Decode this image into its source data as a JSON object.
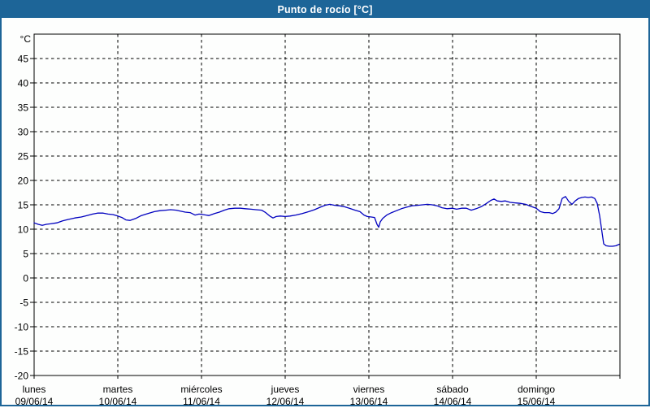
{
  "title": "Punto de rocío [°C]",
  "colors": {
    "header_bg": "#1d6598",
    "frame_border": "#1d6598",
    "line": "#0000bf",
    "grid": "#000000",
    "text": "#000000",
    "background": "#fdfefd"
  },
  "chart_data": {
    "type": "line",
    "title": "Punto de rocío [°C]",
    "xlabel": "",
    "ylabel": "°C",
    "ylim": [
      -20,
      50
    ],
    "yticks": [
      45,
      40,
      35,
      30,
      25,
      20,
      15,
      10,
      5,
      0,
      -5,
      -10,
      -15,
      -20
    ],
    "grid": "dashed",
    "legend": "none",
    "x_axis": {
      "unit": "days",
      "days": [
        {
          "name": "lunes",
          "date": "09/06/14"
        },
        {
          "name": "martes",
          "date": "10/06/14"
        },
        {
          "name": "miércoles",
          "date": "11/06/14"
        },
        {
          "name": "jueves",
          "date": "12/06/14"
        },
        {
          "name": "viernes",
          "date": "13/06/14"
        },
        {
          "name": "sábado",
          "date": "14/06/14"
        },
        {
          "name": "domingo",
          "date": "15/06/14"
        }
      ]
    },
    "series": [
      {
        "name": "Punto de rocío",
        "color": "#0000bf",
        "points": [
          [
            0.0,
            11.3
          ],
          [
            0.049,
            11.0
          ],
          [
            0.097,
            10.8
          ],
          [
            0.146,
            11.0
          ],
          [
            0.194,
            11.1
          ],
          [
            0.272,
            11.3
          ],
          [
            0.34,
            11.7
          ],
          [
            0.408,
            12.0
          ],
          [
            0.485,
            12.3
          ],
          [
            0.563,
            12.5
          ],
          [
            0.631,
            12.8
          ],
          [
            0.699,
            13.1
          ],
          [
            0.757,
            13.3
          ],
          [
            0.825,
            13.3
          ],
          [
            0.883,
            13.1
          ],
          [
            0.942,
            13.0
          ],
          [
            1.0,
            12.7
          ],
          [
            1.049,
            12.4
          ],
          [
            1.097,
            11.9
          ],
          [
            1.146,
            11.8
          ],
          [
            1.214,
            12.2
          ],
          [
            1.282,
            12.8
          ],
          [
            1.359,
            13.2
          ],
          [
            1.437,
            13.6
          ],
          [
            1.505,
            13.8
          ],
          [
            1.573,
            13.9
          ],
          [
            1.631,
            14.0
          ],
          [
            1.699,
            13.9
          ],
          [
            1.748,
            13.7
          ],
          [
            1.806,
            13.5
          ],
          [
            1.864,
            13.4
          ],
          [
            1.922,
            12.9
          ],
          [
            1.971,
            13.1
          ],
          [
            2.019,
            13.0
          ],
          [
            2.087,
            12.8
          ],
          [
            2.155,
            13.2
          ],
          [
            2.214,
            13.5
          ],
          [
            2.272,
            13.9
          ],
          [
            2.33,
            14.2
          ],
          [
            2.398,
            14.3
          ],
          [
            2.466,
            14.3
          ],
          [
            2.524,
            14.2
          ],
          [
            2.592,
            14.1
          ],
          [
            2.65,
            14.0
          ],
          [
            2.718,
            13.9
          ],
          [
            2.767,
            13.4
          ],
          [
            2.816,
            12.7
          ],
          [
            2.854,
            12.3
          ],
          [
            2.893,
            12.6
          ],
          [
            2.942,
            12.7
          ],
          [
            3.0,
            12.6
          ],
          [
            3.058,
            12.7
          ],
          [
            3.126,
            12.9
          ],
          [
            3.204,
            13.2
          ],
          [
            3.282,
            13.6
          ],
          [
            3.35,
            14.0
          ],
          [
            3.417,
            14.5
          ],
          [
            3.476,
            14.9
          ],
          [
            3.534,
            15.1
          ],
          [
            3.592,
            14.9
          ],
          [
            3.65,
            14.8
          ],
          [
            3.709,
            14.6
          ],
          [
            3.767,
            14.3
          ],
          [
            3.835,
            13.9
          ],
          [
            3.893,
            13.6
          ],
          [
            3.942,
            12.9
          ],
          [
            3.981,
            12.6
          ],
          [
            4.029,
            12.5
          ],
          [
            4.068,
            12.4
          ],
          [
            4.097,
            11.0
          ],
          [
            4.117,
            10.4
          ],
          [
            4.136,
            11.5
          ],
          [
            4.165,
            12.2
          ],
          [
            4.214,
            12.9
          ],
          [
            4.272,
            13.4
          ],
          [
            4.33,
            13.8
          ],
          [
            4.388,
            14.2
          ],
          [
            4.447,
            14.5
          ],
          [
            4.515,
            14.8
          ],
          [
            4.583,
            14.9
          ],
          [
            4.641,
            15.0
          ],
          [
            4.699,
            15.1
          ],
          [
            4.757,
            15.0
          ],
          [
            4.816,
            14.8
          ],
          [
            4.874,
            14.4
          ],
          [
            4.932,
            14.2
          ],
          [
            5.0,
            14.3
          ],
          [
            5.049,
            14.1
          ],
          [
            5.107,
            14.3
          ],
          [
            5.165,
            14.3
          ],
          [
            5.223,
            13.9
          ],
          [
            5.282,
            14.2
          ],
          [
            5.34,
            14.6
          ],
          [
            5.398,
            15.2
          ],
          [
            5.456,
            15.9
          ],
          [
            5.495,
            16.2
          ],
          [
            5.534,
            15.8
          ],
          [
            5.583,
            15.7
          ],
          [
            5.631,
            15.8
          ],
          [
            5.689,
            15.5
          ],
          [
            5.748,
            15.4
          ],
          [
            5.806,
            15.3
          ],
          [
            5.874,
            15.1
          ],
          [
            5.932,
            14.7
          ],
          [
            6.0,
            14.3
          ],
          [
            6.049,
            13.6
          ],
          [
            6.097,
            13.4
          ],
          [
            6.155,
            13.4
          ],
          [
            6.195,
            13.2
          ],
          [
            6.233,
            13.5
          ],
          [
            6.272,
            14.2
          ],
          [
            6.31,
            16.3
          ],
          [
            6.35,
            16.7
          ],
          [
            6.388,
            15.7
          ],
          [
            6.427,
            15.1
          ],
          [
            6.466,
            15.8
          ],
          [
            6.505,
            16.3
          ],
          [
            6.544,
            16.5
          ],
          [
            6.583,
            16.6
          ],
          [
            6.621,
            16.5
          ],
          [
            6.66,
            16.6
          ],
          [
            6.699,
            16.3
          ],
          [
            6.728,
            15.3
          ],
          [
            6.757,
            12.8
          ],
          [
            6.786,
            9.3
          ],
          [
            6.806,
            7.0
          ],
          [
            6.835,
            6.6
          ],
          [
            6.874,
            6.5
          ],
          [
            6.913,
            6.5
          ],
          [
            6.951,
            6.6
          ],
          [
            6.99,
            6.9
          ]
        ]
      }
    ]
  }
}
